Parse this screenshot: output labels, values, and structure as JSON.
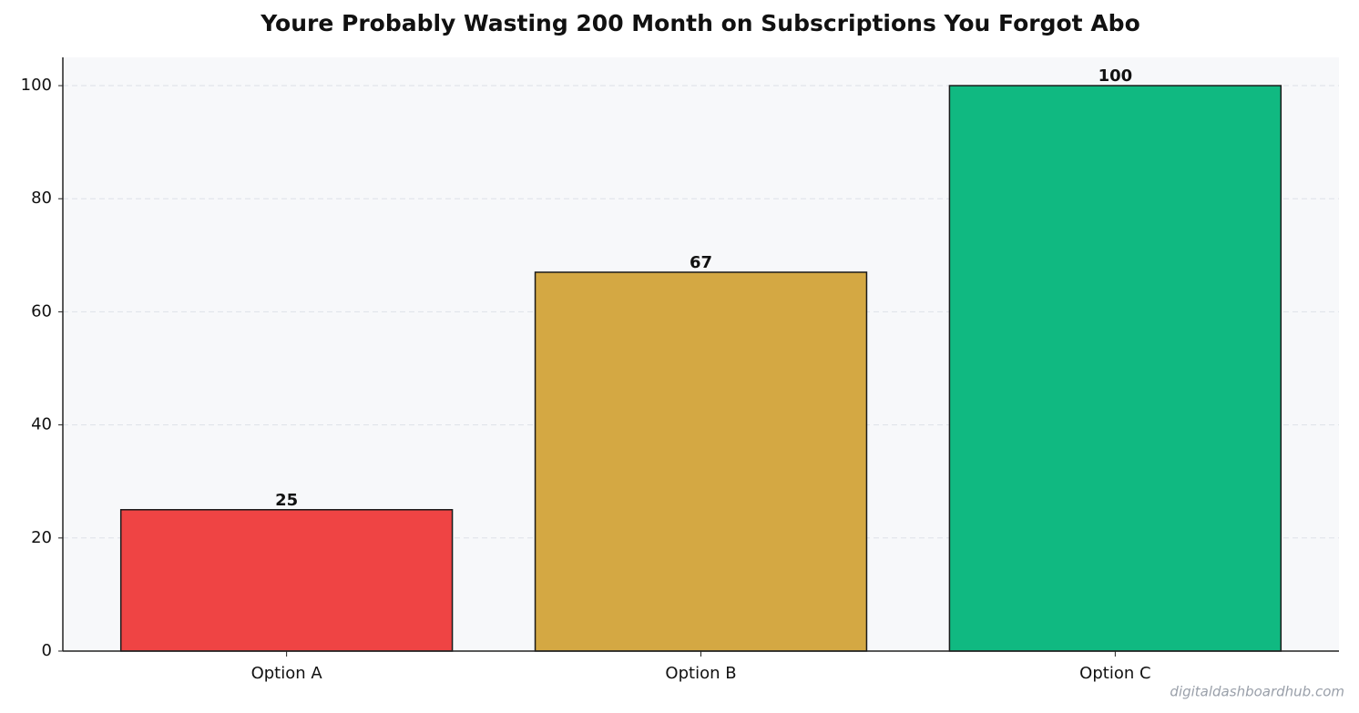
{
  "chart_data": {
    "type": "bar",
    "title": "Youre Probably Wasting  200 Month on Subscriptions You Forgot Abo",
    "categories": [
      "Option A",
      "Option B",
      "Option C"
    ],
    "values": [
      25,
      67,
      100
    ],
    "colors": [
      "#ef4444",
      "#d4a843",
      "#10b981"
    ],
    "ylim": [
      0,
      105
    ],
    "yticks": [
      0,
      20,
      40,
      60,
      80,
      100
    ],
    "grid": true,
    "watermark": "digitaldashboardhub.com"
  }
}
